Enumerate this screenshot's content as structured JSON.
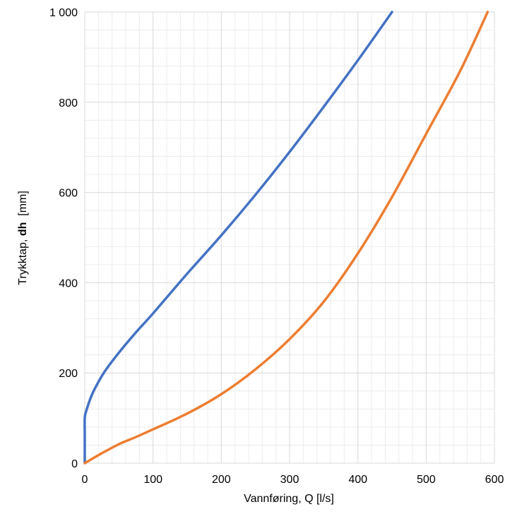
{
  "chart_data": {
    "type": "line",
    "title": "",
    "xlabel": "Vannføring, Q [l/s]",
    "ylabel": {
      "prefix": "Trykktap, ",
      "bold": "dh",
      "suffix": "  [mm]"
    },
    "xlim": [
      0,
      600
    ],
    "ylim": [
      0,
      1000
    ],
    "x_ticks": [
      0,
      100,
      200,
      300,
      400,
      500,
      600
    ],
    "y_ticks": [
      0,
      200,
      400,
      600,
      800,
      1000
    ],
    "x_tick_labels": [
      "0",
      "100",
      "200",
      "300",
      "400",
      "500",
      "600"
    ],
    "y_tick_labels": [
      "0",
      "200",
      "400",
      "600",
      "800",
      "1 000"
    ],
    "x_minor_step": 20,
    "y_minor_step": 40,
    "grid": true,
    "legend": "none",
    "series": [
      {
        "color": "#4472c4",
        "points": [
          [
            0,
            0
          ],
          [
            0,
            60
          ],
          [
            0,
            100
          ],
          [
            2,
            115
          ],
          [
            10,
            150
          ],
          [
            20,
            180
          ],
          [
            30,
            205
          ],
          [
            50,
            245
          ],
          [
            75,
            290
          ],
          [
            100,
            332
          ],
          [
            150,
            420
          ],
          [
            200,
            505
          ],
          [
            250,
            595
          ],
          [
            300,
            690
          ],
          [
            350,
            790
          ],
          [
            400,
            893
          ],
          [
            450,
            1000
          ]
        ]
      },
      {
        "color": "#ed7d31",
        "points": [
          [
            0,
            0
          ],
          [
            25,
            22
          ],
          [
            50,
            42
          ],
          [
            75,
            58
          ],
          [
            100,
            75
          ],
          [
            150,
            110
          ],
          [
            200,
            153
          ],
          [
            250,
            208
          ],
          [
            300,
            275
          ],
          [
            350,
            358
          ],
          [
            400,
            465
          ],
          [
            450,
            590
          ],
          [
            500,
            730
          ],
          [
            550,
            870
          ],
          [
            590,
            1000
          ]
        ]
      }
    ]
  }
}
